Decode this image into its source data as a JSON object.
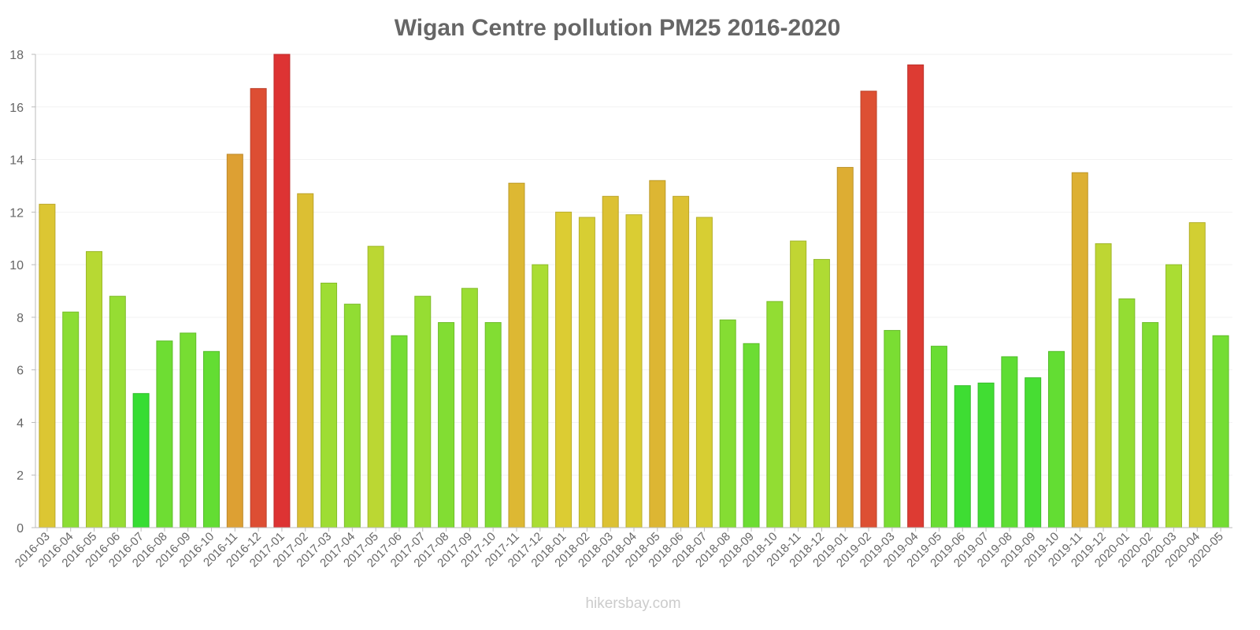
{
  "chart_data": {
    "type": "bar",
    "title": "Wigan Centre pollution PM25 2016-2020",
    "xlabel": "",
    "ylabel": "",
    "ylim": [
      0,
      18
    ],
    "yticks": [
      "0",
      "2",
      "4",
      "6",
      "8",
      "10",
      "12",
      "14",
      "16",
      "18"
    ],
    "grid": true,
    "categories": [
      "2016-03",
      "2016-04",
      "2016-05",
      "2016-06",
      "2016-07",
      "2016-08",
      "2016-09",
      "2016-10",
      "2016-11",
      "2016-12",
      "2017-01",
      "2017-02",
      "2017-03",
      "2017-04",
      "2017-05",
      "2017-06",
      "2017-07",
      "2017-08",
      "2017-09",
      "2017-10",
      "2017-11",
      "2017-12",
      "2018-01",
      "2018-02",
      "2018-03",
      "2018-04",
      "2018-05",
      "2018-06",
      "2018-07",
      "2018-08",
      "2018-09",
      "2018-10",
      "2018-11",
      "2018-12",
      "2019-01",
      "2019-02",
      "2019-03",
      "2019-04",
      "2019-05",
      "2019-06",
      "2019-07",
      "2019-08",
      "2019-09",
      "2019-10",
      "2019-11",
      "2019-12",
      "2020-01",
      "2020-02",
      "2020-03",
      "2020-04",
      "2020-05"
    ],
    "values": [
      12.3,
      8.2,
      10.5,
      8.8,
      5.1,
      7.1,
      7.4,
      6.7,
      14.2,
      16.7,
      18,
      12.7,
      9.3,
      8.5,
      10.7,
      7.3,
      8.8,
      7.8,
      9.1,
      7.8,
      13.1,
      10,
      12,
      11.8,
      12.6,
      11.9,
      13.2,
      12.6,
      11.8,
      7.9,
      7,
      8.6,
      10.9,
      10.2,
      13.7,
      16.6,
      7.5,
      17.6,
      6.9,
      5.4,
      5.5,
      6.5,
      5.7,
      6.7,
      13.5,
      10.8,
      8.7,
      7.8,
      10,
      11.6,
      7.3
    ]
  },
  "watermark": "hikersbay.com"
}
